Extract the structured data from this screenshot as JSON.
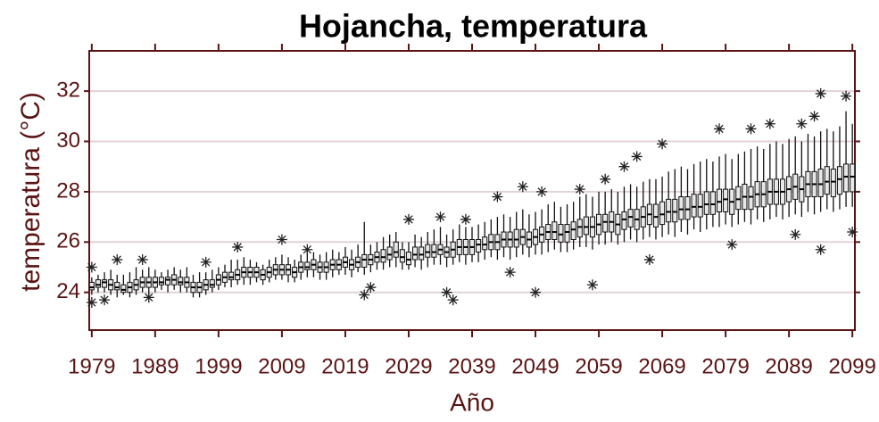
{
  "chart_data": {
    "type": "boxplot",
    "title": "Hojancha, temperatura",
    "xlabel": "Año",
    "ylabel": "temperatura (°C)",
    "x": [
      1979,
      1980,
      1981,
      1982,
      1983,
      1984,
      1985,
      1986,
      1987,
      1988,
      1989,
      1990,
      1991,
      1992,
      1993,
      1994,
      1995,
      1996,
      1997,
      1998,
      1999,
      2000,
      2001,
      2002,
      2003,
      2004,
      2005,
      2006,
      2007,
      2008,
      2009,
      2010,
      2011,
      2012,
      2013,
      2014,
      2015,
      2016,
      2017,
      2018,
      2019,
      2020,
      2021,
      2022,
      2023,
      2024,
      2025,
      2026,
      2027,
      2028,
      2029,
      2030,
      2031,
      2032,
      2033,
      2034,
      2035,
      2036,
      2037,
      2038,
      2039,
      2040,
      2041,
      2042,
      2043,
      2044,
      2045,
      2046,
      2047,
      2048,
      2049,
      2050,
      2051,
      2052,
      2053,
      2054,
      2055,
      2056,
      2057,
      2058,
      2059,
      2060,
      2061,
      2062,
      2063,
      2064,
      2065,
      2066,
      2067,
      2068,
      2069,
      2070,
      2071,
      2072,
      2073,
      2074,
      2075,
      2076,
      2077,
      2078,
      2079,
      2080,
      2081,
      2082,
      2083,
      2084,
      2085,
      2086,
      2087,
      2088,
      2089,
      2090,
      2091,
      2092,
      2093,
      2094,
      2095,
      2096,
      2097,
      2098,
      2099
    ],
    "boxes": [
      [
        23.9,
        24.1,
        24.2,
        24.4,
        24.6
      ],
      [
        24.0,
        24.2,
        24.3,
        24.5,
        24.7
      ],
      [
        24.0,
        24.2,
        24.4,
        24.5,
        24.8
      ],
      [
        23.9,
        24.1,
        24.3,
        24.5,
        24.9
      ],
      [
        23.8,
        24.1,
        24.2,
        24.4,
        24.7
      ],
      [
        23.9,
        24.0,
        24.1,
        24.3,
        24.7
      ],
      [
        23.8,
        24.0,
        24.2,
        24.4,
        24.8
      ],
      [
        23.9,
        24.1,
        24.3,
        24.5,
        25.0
      ],
      [
        24.0,
        24.2,
        24.4,
        24.6,
        24.9
      ],
      [
        23.9,
        24.2,
        24.4,
        24.6,
        25.0
      ],
      [
        24.0,
        24.2,
        24.4,
        24.6,
        24.9
      ],
      [
        24.1,
        24.3,
        24.4,
        24.6,
        24.8
      ],
      [
        24.0,
        24.3,
        24.5,
        24.6,
        24.9
      ],
      [
        24.1,
        24.3,
        24.5,
        24.7,
        25.0
      ],
      [
        24.0,
        24.3,
        24.4,
        24.6,
        24.9
      ],
      [
        24.0,
        24.2,
        24.4,
        24.6,
        25.0
      ],
      [
        23.8,
        24.0,
        24.2,
        24.4,
        24.7
      ],
      [
        23.8,
        24.0,
        24.2,
        24.4,
        24.8
      ],
      [
        23.9,
        24.1,
        24.3,
        24.5,
        24.8
      ],
      [
        24.0,
        24.2,
        24.3,
        24.5,
        24.9
      ],
      [
        24.1,
        24.3,
        24.5,
        24.7,
        25.0
      ],
      [
        24.2,
        24.4,
        24.6,
        24.8,
        25.1
      ],
      [
        24.2,
        24.5,
        24.6,
        24.8,
        25.3
      ],
      [
        24.3,
        24.5,
        24.7,
        24.9,
        25.3
      ],
      [
        24.3,
        24.6,
        24.8,
        25.0,
        25.4
      ],
      [
        24.3,
        24.6,
        24.8,
        25.0,
        25.3
      ],
      [
        24.4,
        24.6,
        24.8,
        25.0,
        25.2
      ],
      [
        24.3,
        24.5,
        24.7,
        24.9,
        25.1
      ],
      [
        24.4,
        24.6,
        24.8,
        25.0,
        25.3
      ],
      [
        24.5,
        24.7,
        24.9,
        25.1,
        25.4
      ],
      [
        24.5,
        24.7,
        24.9,
        25.1,
        25.5
      ],
      [
        24.4,
        24.7,
        24.9,
        25.1,
        25.4
      ],
      [
        24.4,
        24.6,
        24.8,
        25.0,
        25.3
      ],
      [
        24.5,
        24.8,
        25.0,
        25.2,
        25.5
      ],
      [
        24.6,
        24.9,
        25.0,
        25.2,
        25.6
      ],
      [
        24.6,
        24.9,
        25.1,
        25.3,
        25.6
      ],
      [
        24.5,
        24.8,
        25.0,
        25.2,
        25.5
      ],
      [
        24.5,
        24.8,
        25.0,
        25.2,
        25.6
      ],
      [
        24.6,
        24.9,
        25.1,
        25.3,
        25.7
      ],
      [
        24.7,
        24.9,
        25.1,
        25.3,
        25.6
      ],
      [
        24.7,
        25.0,
        25.2,
        25.4,
        25.8
      ],
      [
        24.6,
        24.9,
        25.1,
        25.3,
        25.7
      ],
      [
        24.8,
        25.0,
        25.2,
        25.4,
        25.9
      ],
      [
        24.7,
        25.0,
        25.3,
        25.5,
        26.8
      ],
      [
        24.8,
        25.1,
        25.3,
        25.5,
        25.9
      ],
      [
        24.9,
        25.2,
        25.4,
        25.6,
        26.0
      ],
      [
        24.9,
        25.2,
        25.4,
        25.7,
        26.2
      ],
      [
        25.0,
        25.3,
        25.5,
        25.8,
        26.3
      ],
      [
        25.0,
        25.4,
        25.6,
        26.0,
        26.4
      ],
      [
        24.9,
        25.2,
        25.4,
        25.7,
        26.0
      ],
      [
        24.9,
        25.1,
        25.3,
        25.6,
        26.0
      ],
      [
        25.0,
        25.3,
        25.5,
        25.8,
        26.3
      ],
      [
        24.9,
        25.3,
        25.5,
        25.8,
        26.2
      ],
      [
        25.0,
        25.4,
        25.6,
        25.9,
        26.4
      ],
      [
        25.1,
        25.4,
        25.6,
        25.9,
        26.5
      ],
      [
        25.1,
        25.5,
        25.7,
        25.9,
        26.6
      ],
      [
        25.0,
        25.4,
        25.6,
        25.8,
        26.3
      ],
      [
        25.1,
        25.4,
        25.7,
        26.0,
        26.5
      ],
      [
        25.2,
        25.5,
        25.8,
        26.1,
        26.7
      ],
      [
        25.1,
        25.5,
        25.8,
        26.1,
        26.6
      ],
      [
        25.2,
        25.5,
        25.8,
        26.1,
        26.6
      ],
      [
        25.2,
        25.6,
        25.9,
        26.1,
        26.7
      ],
      [
        25.3,
        25.7,
        25.9,
        26.2,
        26.8
      ],
      [
        25.4,
        25.7,
        26.0,
        26.3,
        26.9
      ],
      [
        25.3,
        25.7,
        26.0,
        26.3,
        27.0
      ],
      [
        25.4,
        25.8,
        26.1,
        26.4,
        27.1
      ],
      [
        25.3,
        25.8,
        26.1,
        26.4,
        27.0
      ],
      [
        25.4,
        25.8,
        26.1,
        26.5,
        27.2
      ],
      [
        25.5,
        25.9,
        26.2,
        26.5,
        27.3
      ],
      [
        25.4,
        25.8,
        26.1,
        26.4,
        27.1
      ],
      [
        25.5,
        25.9,
        26.2,
        26.5,
        27.2
      ],
      [
        25.5,
        26.0,
        26.3,
        26.6,
        27.3
      ],
      [
        25.6,
        26.1,
        26.4,
        26.7,
        27.5
      ],
      [
        25.7,
        26.1,
        26.4,
        26.8,
        27.6
      ],
      [
        25.6,
        26.0,
        26.3,
        26.7,
        27.4
      ],
      [
        25.6,
        26.0,
        26.4,
        26.7,
        27.5
      ],
      [
        25.7,
        26.1,
        26.5,
        26.8,
        27.6
      ],
      [
        25.8,
        26.2,
        26.6,
        26.9,
        27.8
      ],
      [
        25.8,
        26.3,
        26.6,
        27.0,
        27.9
      ],
      [
        25.7,
        26.2,
        26.6,
        27.0,
        27.8
      ],
      [
        25.9,
        26.3,
        26.7,
        27.1,
        28.0
      ],
      [
        25.9,
        26.4,
        26.8,
        27.1,
        28.0
      ],
      [
        26.0,
        26.4,
        26.8,
        27.2,
        28.1
      ],
      [
        25.9,
        26.3,
        26.7,
        27.1,
        28.0
      ],
      [
        26.0,
        26.5,
        26.9,
        27.2,
        28.2
      ],
      [
        26.1,
        26.6,
        27.0,
        27.3,
        28.3
      ],
      [
        26.0,
        26.5,
        26.9,
        27.3,
        28.2
      ],
      [
        26.1,
        26.6,
        27.0,
        27.4,
        28.4
      ],
      [
        26.2,
        26.7,
        27.1,
        27.5,
        28.5
      ],
      [
        26.1,
        26.6,
        27.0,
        27.5,
        28.5
      ],
      [
        26.2,
        26.7,
        27.1,
        27.6,
        28.6
      ],
      [
        26.3,
        26.8,
        27.2,
        27.7,
        28.8
      ],
      [
        26.2,
        26.8,
        27.2,
        27.7,
        28.9
      ],
      [
        26.4,
        26.9,
        27.3,
        27.8,
        29.0
      ],
      [
        26.3,
        26.9,
        27.3,
        27.8,
        28.9
      ],
      [
        26.5,
        27.0,
        27.4,
        27.9,
        29.1
      ],
      [
        26.4,
        27.0,
        27.4,
        27.9,
        29.2
      ],
      [
        26.5,
        27.1,
        27.5,
        28.0,
        29.3
      ],
      [
        26.6,
        27.1,
        27.5,
        28.0,
        29.2
      ],
      [
        26.6,
        27.2,
        27.6,
        28.1,
        29.4
      ],
      [
        26.7,
        27.2,
        27.7,
        28.1,
        29.5
      ],
      [
        26.6,
        27.1,
        27.6,
        28.1,
        29.3
      ],
      [
        26.7,
        27.3,
        27.7,
        28.2,
        29.5
      ],
      [
        26.8,
        27.3,
        27.8,
        28.3,
        29.6
      ],
      [
        26.7,
        27.3,
        27.8,
        28.2,
        29.7
      ],
      [
        26.9,
        27.4,
        27.9,
        28.4,
        29.8
      ],
      [
        26.8,
        27.4,
        27.9,
        28.4,
        29.7
      ],
      [
        26.9,
        27.5,
        28.0,
        28.5,
        29.9
      ],
      [
        27.0,
        27.5,
        28.0,
        28.5,
        30.0
      ],
      [
        26.9,
        27.5,
        28.0,
        28.5,
        29.9
      ],
      [
        27.0,
        27.6,
        28.1,
        28.6,
        30.1
      ],
      [
        27.1,
        27.7,
        28.2,
        28.7,
        30.2
      ],
      [
        27.0,
        27.6,
        28.1,
        28.6,
        30.0
      ],
      [
        27.2,
        27.8,
        28.3,
        28.8,
        30.3
      ],
      [
        27.1,
        27.8,
        28.3,
        28.8,
        30.2
      ],
      [
        27.2,
        27.8,
        28.3,
        28.9,
        30.4
      ],
      [
        27.3,
        27.9,
        28.4,
        29.0,
        30.5
      ],
      [
        27.2,
        27.8,
        28.4,
        28.9,
        30.4
      ],
      [
        27.3,
        27.9,
        28.5,
        29.0,
        30.6
      ],
      [
        27.4,
        28.0,
        28.6,
        29.1,
        31.2
      ],
      [
        27.4,
        28.0,
        28.6,
        29.1,
        30.7
      ]
    ],
    "outliers": [
      [
        1979,
        25.0
      ],
      [
        1979,
        23.6
      ],
      [
        1981,
        23.7
      ],
      [
        1983,
        25.3
      ],
      [
        1987,
        25.3
      ],
      [
        1988,
        23.8
      ],
      [
        1997,
        25.2
      ],
      [
        2002,
        25.8
      ],
      [
        2009,
        26.1
      ],
      [
        2013,
        25.7
      ],
      [
        2022,
        23.9
      ],
      [
        2023,
        24.2
      ],
      [
        2029,
        26.9
      ],
      [
        2034,
        27.0
      ],
      [
        2035,
        24.0
      ],
      [
        2036,
        23.7
      ],
      [
        2038,
        26.9
      ],
      [
        2043,
        27.8
      ],
      [
        2045,
        24.8
      ],
      [
        2047,
        28.2
      ],
      [
        2049,
        24.0
      ],
      [
        2050,
        28.0
      ],
      [
        2056,
        28.1
      ],
      [
        2058,
        24.3
      ],
      [
        2060,
        28.5
      ],
      [
        2063,
        29.0
      ],
      [
        2065,
        29.4
      ],
      [
        2067,
        25.3
      ],
      [
        2069,
        29.9
      ],
      [
        2078,
        30.5
      ],
      [
        2080,
        25.9
      ],
      [
        2083,
        30.5
      ],
      [
        2086,
        30.7
      ],
      [
        2090,
        26.3
      ],
      [
        2091,
        30.7
      ],
      [
        2093,
        31.0
      ],
      [
        2094,
        31.9
      ],
      [
        2094,
        25.7
      ],
      [
        2098,
        31.8
      ],
      [
        2099,
        26.4
      ]
    ],
    "xlim": [
      1978.6,
      2099.4
    ],
    "xticks": [
      1979,
      1989,
      1999,
      2009,
      2019,
      2029,
      2039,
      2049,
      2059,
      2069,
      2079,
      2089,
      2099
    ],
    "ylim": [
      22.5,
      33.6
    ],
    "yticks": [
      24,
      26,
      28,
      30,
      32
    ],
    "grid": true
  }
}
